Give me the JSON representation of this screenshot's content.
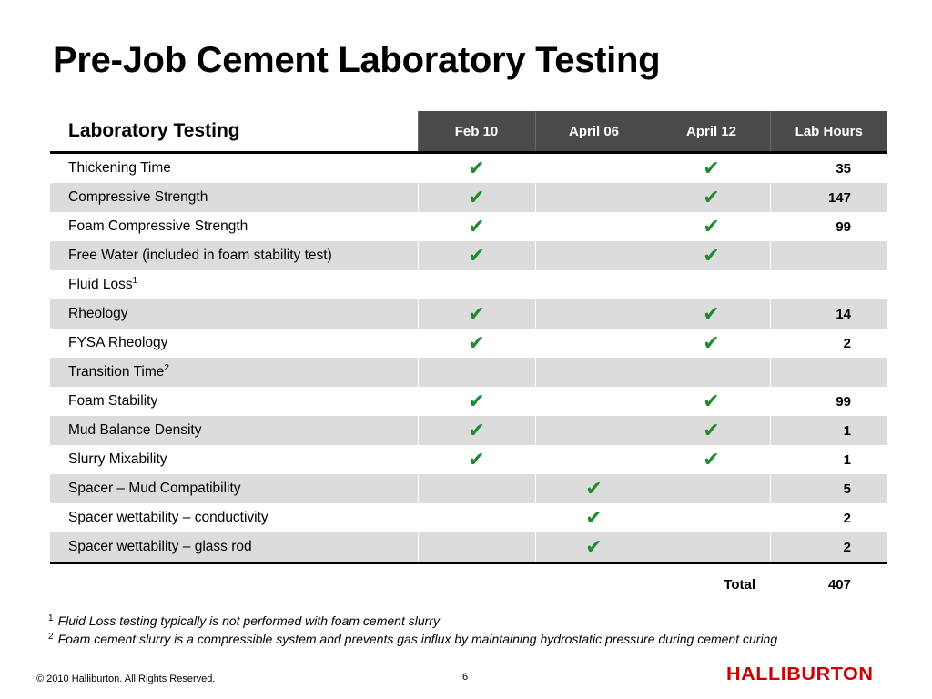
{
  "title": "Pre-Job Cement Laboratory Testing",
  "table": {
    "headers": [
      "Laboratory Testing",
      "Feb 10",
      "April 06",
      "April 12",
      "Lab Hours"
    ],
    "check_glyph": "✔",
    "check_color": "#1f8a2e",
    "rows": [
      {
        "name": "Thickening Time",
        "sup": "",
        "feb10": true,
        "apr06": false,
        "apr12": true,
        "hours": "35"
      },
      {
        "name": "Compressive Strength",
        "sup": "",
        "feb10": true,
        "apr06": false,
        "apr12": true,
        "hours": "147"
      },
      {
        "name": "Foam Compressive Strength",
        "sup": "",
        "feb10": true,
        "apr06": false,
        "apr12": true,
        "hours": "99"
      },
      {
        "name": "Free Water (included in foam stability test)",
        "sup": "",
        "feb10": true,
        "apr06": false,
        "apr12": true,
        "hours": ""
      },
      {
        "name": "Fluid Loss",
        "sup": "1",
        "feb10": false,
        "apr06": false,
        "apr12": false,
        "hours": ""
      },
      {
        "name": "Rheology",
        "sup": "",
        "feb10": true,
        "apr06": false,
        "apr12": true,
        "hours": "14"
      },
      {
        "name": "FYSA  Rheology",
        "sup": "",
        "feb10": true,
        "apr06": false,
        "apr12": true,
        "hours": "2"
      },
      {
        "name": "Transition Time",
        "sup": "2",
        "feb10": false,
        "apr06": false,
        "apr12": false,
        "hours": ""
      },
      {
        "name": "Foam Stability",
        "sup": "",
        "feb10": true,
        "apr06": false,
        "apr12": true,
        "hours": "99"
      },
      {
        "name": "Mud Balance Density",
        "sup": "",
        "feb10": true,
        "apr06": false,
        "apr12": true,
        "hours": "1"
      },
      {
        "name": "Slurry Mixability",
        "sup": "",
        "feb10": true,
        "apr06": false,
        "apr12": true,
        "hours": "1"
      },
      {
        "name": "Spacer – Mud Compatibility",
        "sup": "",
        "feb10": false,
        "apr06": true,
        "apr12": false,
        "hours": "5"
      },
      {
        "name": "Spacer wettability – conductivity",
        "sup": "",
        "feb10": false,
        "apr06": true,
        "apr12": false,
        "hours": "2"
      },
      {
        "name": "Spacer wettability – glass rod",
        "sup": "",
        "feb10": false,
        "apr06": true,
        "apr12": false,
        "hours": "2"
      }
    ],
    "total_label": "Total",
    "total_value": "407"
  },
  "footnotes": [
    {
      "mark": "1",
      "text": "Fluid Loss testing typically is not performed with foam cement slurry"
    },
    {
      "mark": "2",
      "text": "Foam cement slurry is a compressible system and prevents gas influx by maintaining hydrostatic pressure during cement curing"
    }
  ],
  "footer": {
    "copyright": "© 2010 Halliburton. All Rights Reserved.",
    "page_number": "6",
    "logo_text": "HALLIBURTON",
    "logo_color": "#cc0000"
  }
}
